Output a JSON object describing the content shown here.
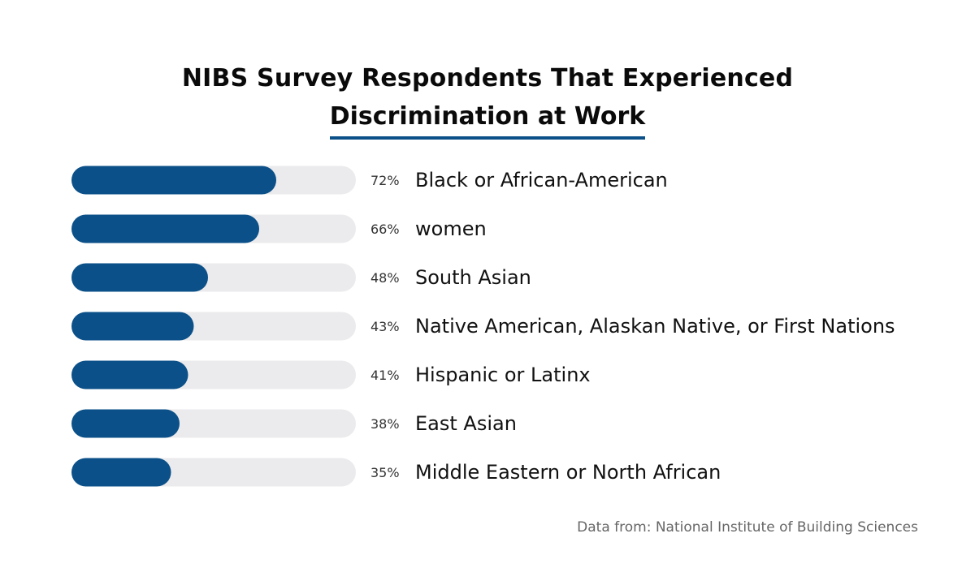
{
  "title_line1": "NIBS Survey Respondents That Experienced",
  "title_line2": "Discrimination at Work",
  "source": "Data from: National Institute of Building Sciences",
  "colors": {
    "bar": "#0b5088",
    "track": "#ebebed",
    "title_underline": "#0b5088"
  },
  "chart_data": {
    "type": "bar",
    "orientation": "horizontal",
    "title": "NIBS Survey Respondents That Experienced Discrimination at Work",
    "categories": [
      "Black or African-American",
      "women",
      "South Asian",
      "Native American, Alaskan Native, or First Nations",
      "Hispanic or Latinx",
      "East Asian",
      "Middle Eastern or North African"
    ],
    "values": [
      72,
      66,
      48,
      43,
      41,
      38,
      35
    ],
    "value_labels": [
      "72%",
      "66%",
      "48%",
      "43%",
      "41%",
      "38%",
      "35%"
    ],
    "xlim": [
      0,
      100
    ],
    "unit": "%",
    "grid": false,
    "legend": "none"
  }
}
